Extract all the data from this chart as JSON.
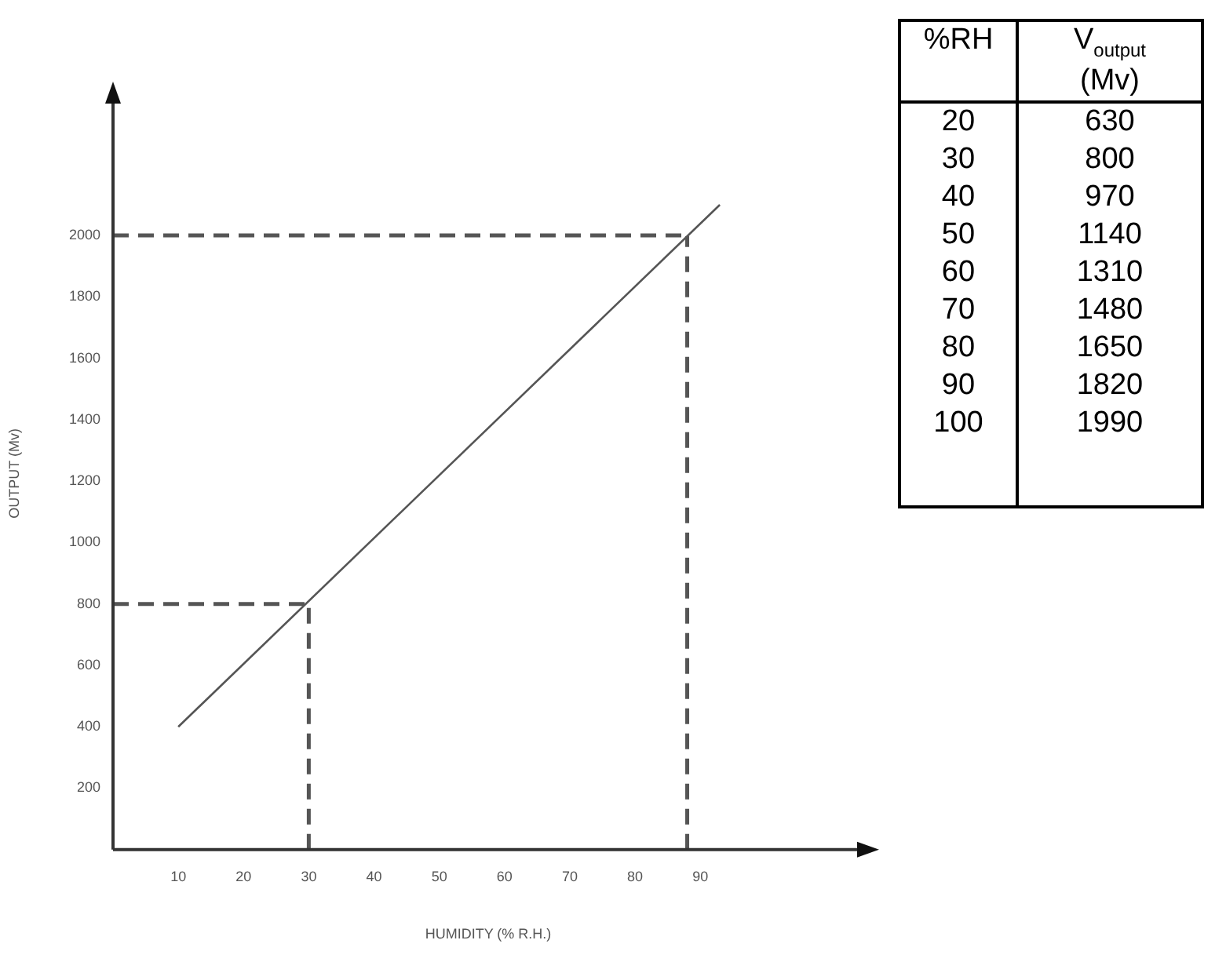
{
  "chart_data": [
    {
      "type": "line",
      "xlabel": "HUMIDITY (% R.H.)",
      "ylabel": "OUTPUT (Mv)",
      "x": [
        10,
        93
      ],
      "values": [
        400,
        2100
      ],
      "color": "#555555",
      "marker": "none",
      "line_style": "solid",
      "xlim": [
        0,
        115
      ],
      "ylim": [
        0,
        2450
      ],
      "xticks": [
        10,
        20,
        30,
        40,
        50,
        60,
        70,
        80,
        90
      ],
      "yticks": [
        200,
        400,
        600,
        800,
        1000,
        1200,
        1400,
        1600,
        1800,
        2000
      ],
      "grid": false,
      "legend": false,
      "ref_lines": [
        {
          "axis": "y",
          "value": 800,
          "color": "#555555",
          "line_style": "dashed"
        },
        {
          "axis": "x",
          "value": 30,
          "color": "#555555",
          "line_style": "dashed"
        },
        {
          "axis": "y",
          "value": 2000,
          "color": "#555555",
          "line_style": "dashed"
        },
        {
          "axis": "x",
          "value": 88,
          "color": "#555555",
          "line_style": "dashed"
        }
      ]
    },
    {
      "type": "heatmap",
      "ylabel": "%RH",
      "categories": [
        "V$_{output}$ (Mv)"
      ],
      "y_categories": [
        "20",
        "30",
        "40",
        "50",
        "60",
        "70",
        "80",
        "90",
        "100"
      ],
      "cells": [
        [
          630
        ],
        [
          800
        ],
        [
          970
        ],
        [
          1140
        ],
        [
          1310
        ],
        [
          1480
        ],
        [
          1650
        ],
        [
          1820
        ],
        [
          1990
        ]
      ],
      "data_labels": true
    }
  ]
}
